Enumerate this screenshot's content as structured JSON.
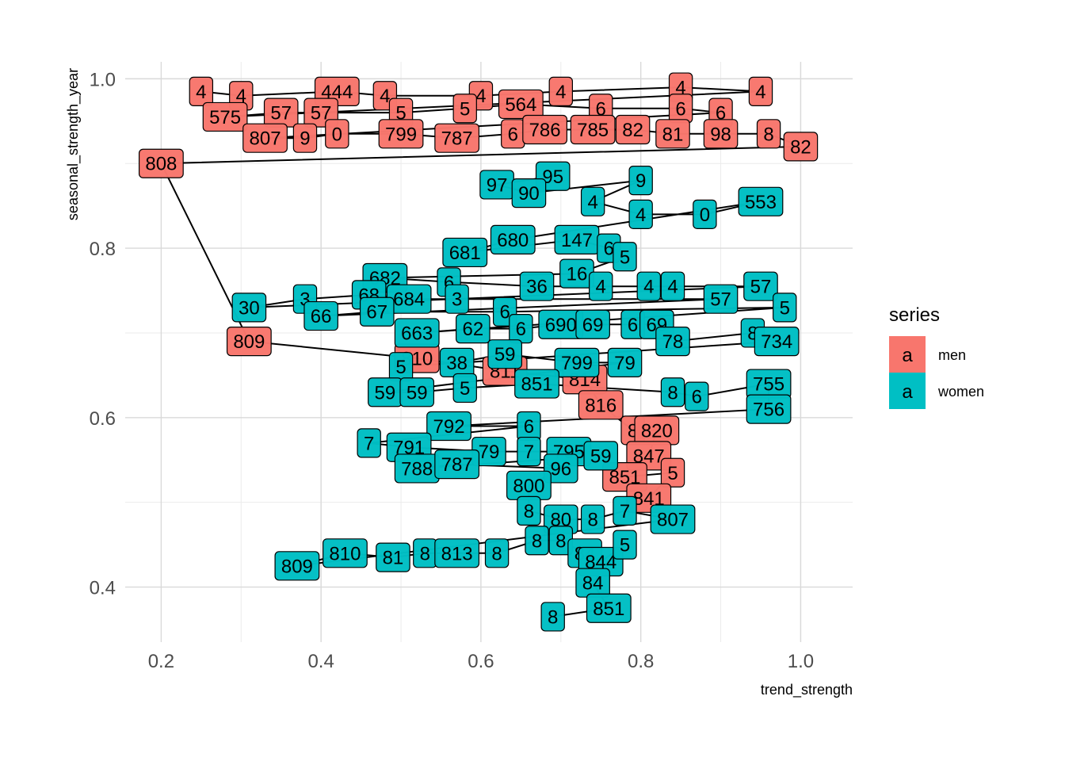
{
  "chart_data": {
    "type": "scatter",
    "title": "",
    "xlabel": "trend_strength",
    "ylabel": "seasonal_strength_year",
    "xlim": [
      0.155,
      1.065
    ],
    "ylim": [
      0.335,
      1.02
    ],
    "x_ticks": [
      "0.2",
      "0.4",
      "0.6",
      "0.8",
      "1.0"
    ],
    "y_ticks": [
      "0.4",
      "0.6",
      "0.8",
      "1.0"
    ],
    "grid": true,
    "legend": {
      "title": "series",
      "position": "right",
      "key_glyph": "a",
      "entries": [
        "men",
        "women"
      ]
    },
    "series": [
      {
        "name": "men",
        "color": "#F8766D",
        "points": [
          {
            "x": 0.25,
            "y": 0.985,
            "label": "4"
          },
          {
            "x": 0.3,
            "y": 0.98,
            "label": "4"
          },
          {
            "x": 0.42,
            "y": 0.985,
            "label": "444"
          },
          {
            "x": 0.48,
            "y": 0.98,
            "label": "4"
          },
          {
            "x": 0.6,
            "y": 0.98,
            "label": "4"
          },
          {
            "x": 0.7,
            "y": 0.985,
            "label": "4"
          },
          {
            "x": 0.85,
            "y": 0.99,
            "label": "4"
          },
          {
            "x": 0.95,
            "y": 0.985,
            "label": "4"
          },
          {
            "x": 0.28,
            "y": 0.955,
            "label": "575"
          },
          {
            "x": 0.35,
            "y": 0.96,
            "label": "57"
          },
          {
            "x": 0.4,
            "y": 0.96,
            "label": "57"
          },
          {
            "x": 0.5,
            "y": 0.96,
            "label": "5"
          },
          {
            "x": 0.58,
            "y": 0.965,
            "label": "5"
          },
          {
            "x": 0.65,
            "y": 0.97,
            "label": "564"
          },
          {
            "x": 0.75,
            "y": 0.965,
            "label": "6"
          },
          {
            "x": 0.85,
            "y": 0.965,
            "label": "6"
          },
          {
            "x": 0.9,
            "y": 0.96,
            "label": "6"
          },
          {
            "x": 0.33,
            "y": 0.93,
            "label": "807"
          },
          {
            "x": 0.38,
            "y": 0.93,
            "label": "9"
          },
          {
            "x": 0.42,
            "y": 0.935,
            "label": "0"
          },
          {
            "x": 0.5,
            "y": 0.935,
            "label": "799"
          },
          {
            "x": 0.57,
            "y": 0.93,
            "label": "787"
          },
          {
            "x": 0.64,
            "y": 0.935,
            "label": "6"
          },
          {
            "x": 0.68,
            "y": 0.94,
            "label": "786"
          },
          {
            "x": 0.74,
            "y": 0.94,
            "label": "785"
          },
          {
            "x": 0.79,
            "y": 0.94,
            "label": "82"
          },
          {
            "x": 0.84,
            "y": 0.935,
            "label": "81"
          },
          {
            "x": 0.9,
            "y": 0.935,
            "label": "98"
          },
          {
            "x": 0.96,
            "y": 0.935,
            "label": "8"
          },
          {
            "x": 1.0,
            "y": 0.92,
            "label": "82"
          },
          {
            "x": 0.2,
            "y": 0.9,
            "label": "808"
          },
          {
            "x": 0.31,
            "y": 0.69,
            "label": "809"
          },
          {
            "x": 0.52,
            "y": 0.67,
            "label": "810"
          },
          {
            "x": 0.63,
            "y": 0.655,
            "label": "811"
          },
          {
            "x": 0.73,
            "y": 0.645,
            "label": "814"
          },
          {
            "x": 0.75,
            "y": 0.615,
            "label": "816"
          },
          {
            "x": 0.79,
            "y": 0.585,
            "label": "8"
          },
          {
            "x": 0.82,
            "y": 0.585,
            "label": "820"
          },
          {
            "x": 0.81,
            "y": 0.555,
            "label": "847"
          },
          {
            "x": 0.78,
            "y": 0.53,
            "label": "851"
          },
          {
            "x": 0.84,
            "y": 0.535,
            "label": "5"
          },
          {
            "x": 0.81,
            "y": 0.505,
            "label": "841"
          }
        ]
      },
      {
        "name": "women",
        "color": "#00BFC4",
        "points": [
          {
            "x": 0.69,
            "y": 0.885,
            "label": "95"
          },
          {
            "x": 0.62,
            "y": 0.875,
            "label": "97"
          },
          {
            "x": 0.66,
            "y": 0.865,
            "label": "90"
          },
          {
            "x": 0.8,
            "y": 0.88,
            "label": "9"
          },
          {
            "x": 0.74,
            "y": 0.855,
            "label": "4"
          },
          {
            "x": 0.8,
            "y": 0.84,
            "label": "4"
          },
          {
            "x": 0.88,
            "y": 0.84,
            "label": "0"
          },
          {
            "x": 0.95,
            "y": 0.855,
            "label": "553"
          },
          {
            "x": 0.64,
            "y": 0.81,
            "label": "680"
          },
          {
            "x": 0.58,
            "y": 0.795,
            "label": "681"
          },
          {
            "x": 0.72,
            "y": 0.81,
            "label": "147"
          },
          {
            "x": 0.76,
            "y": 0.8,
            "label": "6"
          },
          {
            "x": 0.78,
            "y": 0.79,
            "label": "5"
          },
          {
            "x": 0.72,
            "y": 0.77,
            "label": "16"
          },
          {
            "x": 0.48,
            "y": 0.765,
            "label": "682"
          },
          {
            "x": 0.56,
            "y": 0.76,
            "label": "6"
          },
          {
            "x": 0.67,
            "y": 0.755,
            "label": "36"
          },
          {
            "x": 0.75,
            "y": 0.755,
            "label": "4"
          },
          {
            "x": 0.81,
            "y": 0.755,
            "label": "4"
          },
          {
            "x": 0.84,
            "y": 0.755,
            "label": "4"
          },
          {
            "x": 0.95,
            "y": 0.755,
            "label": "57"
          },
          {
            "x": 0.31,
            "y": 0.73,
            "label": "30"
          },
          {
            "x": 0.38,
            "y": 0.74,
            "label": "3"
          },
          {
            "x": 0.46,
            "y": 0.745,
            "label": "68"
          },
          {
            "x": 0.51,
            "y": 0.74,
            "label": "684"
          },
          {
            "x": 0.57,
            "y": 0.74,
            "label": "3"
          },
          {
            "x": 0.9,
            "y": 0.74,
            "label": "57"
          },
          {
            "x": 0.4,
            "y": 0.72,
            "label": "66"
          },
          {
            "x": 0.47,
            "y": 0.725,
            "label": "67"
          },
          {
            "x": 0.63,
            "y": 0.725,
            "label": "6"
          },
          {
            "x": 0.98,
            "y": 0.73,
            "label": "5"
          },
          {
            "x": 0.52,
            "y": 0.7,
            "label": "663"
          },
          {
            "x": 0.59,
            "y": 0.705,
            "label": "62"
          },
          {
            "x": 0.65,
            "y": 0.705,
            "label": "6"
          },
          {
            "x": 0.7,
            "y": 0.71,
            "label": "690"
          },
          {
            "x": 0.74,
            "y": 0.71,
            "label": "69"
          },
          {
            "x": 0.79,
            "y": 0.71,
            "label": "6"
          },
          {
            "x": 0.82,
            "y": 0.71,
            "label": "69"
          },
          {
            "x": 0.84,
            "y": 0.69,
            "label": "78"
          },
          {
            "x": 0.94,
            "y": 0.7,
            "label": "8"
          },
          {
            "x": 0.97,
            "y": 0.69,
            "label": "734"
          },
          {
            "x": 0.5,
            "y": 0.66,
            "label": "5"
          },
          {
            "x": 0.57,
            "y": 0.665,
            "label": "38"
          },
          {
            "x": 0.63,
            "y": 0.675,
            "label": "59"
          },
          {
            "x": 0.72,
            "y": 0.665,
            "label": "799"
          },
          {
            "x": 0.78,
            "y": 0.665,
            "label": "79"
          },
          {
            "x": 0.48,
            "y": 0.63,
            "label": "59"
          },
          {
            "x": 0.52,
            "y": 0.63,
            "label": "59"
          },
          {
            "x": 0.58,
            "y": 0.635,
            "label": "5"
          },
          {
            "x": 0.67,
            "y": 0.64,
            "label": "851"
          },
          {
            "x": 0.84,
            "y": 0.63,
            "label": "8"
          },
          {
            "x": 0.87,
            "y": 0.625,
            "label": "6"
          },
          {
            "x": 0.96,
            "y": 0.64,
            "label": "755"
          },
          {
            "x": 0.96,
            "y": 0.61,
            "label": "756"
          },
          {
            "x": 0.56,
            "y": 0.59,
            "label": "792"
          },
          {
            "x": 0.66,
            "y": 0.59,
            "label": "6"
          },
          {
            "x": 0.46,
            "y": 0.57,
            "label": "7"
          },
          {
            "x": 0.51,
            "y": 0.565,
            "label": "791"
          },
          {
            "x": 0.61,
            "y": 0.56,
            "label": "79"
          },
          {
            "x": 0.66,
            "y": 0.56,
            "label": "7"
          },
          {
            "x": 0.71,
            "y": 0.56,
            "label": "795"
          },
          {
            "x": 0.75,
            "y": 0.555,
            "label": "59"
          },
          {
            "x": 0.52,
            "y": 0.54,
            "label": "788"
          },
          {
            "x": 0.57,
            "y": 0.545,
            "label": "787"
          },
          {
            "x": 0.7,
            "y": 0.54,
            "label": "96"
          },
          {
            "x": 0.66,
            "y": 0.52,
            "label": "800"
          },
          {
            "x": 0.66,
            "y": 0.49,
            "label": "8"
          },
          {
            "x": 0.7,
            "y": 0.48,
            "label": "80"
          },
          {
            "x": 0.74,
            "y": 0.48,
            "label": "8"
          },
          {
            "x": 0.78,
            "y": 0.49,
            "label": "7"
          },
          {
            "x": 0.84,
            "y": 0.48,
            "label": "807"
          },
          {
            "x": 0.37,
            "y": 0.425,
            "label": "809"
          },
          {
            "x": 0.43,
            "y": 0.44,
            "label": "810"
          },
          {
            "x": 0.49,
            "y": 0.435,
            "label": "81"
          },
          {
            "x": 0.53,
            "y": 0.44,
            "label": "8"
          },
          {
            "x": 0.57,
            "y": 0.44,
            "label": "813"
          },
          {
            "x": 0.62,
            "y": 0.44,
            "label": "8"
          },
          {
            "x": 0.67,
            "y": 0.455,
            "label": "8"
          },
          {
            "x": 0.7,
            "y": 0.455,
            "label": "8"
          },
          {
            "x": 0.73,
            "y": 0.44,
            "label": "84"
          },
          {
            "x": 0.75,
            "y": 0.43,
            "label": "844"
          },
          {
            "x": 0.78,
            "y": 0.45,
            "label": "5"
          },
          {
            "x": 0.74,
            "y": 0.405,
            "label": "84"
          },
          {
            "x": 0.76,
            "y": 0.375,
            "label": "851"
          },
          {
            "x": 0.69,
            "y": 0.365,
            "label": "8"
          }
        ]
      }
    ]
  }
}
